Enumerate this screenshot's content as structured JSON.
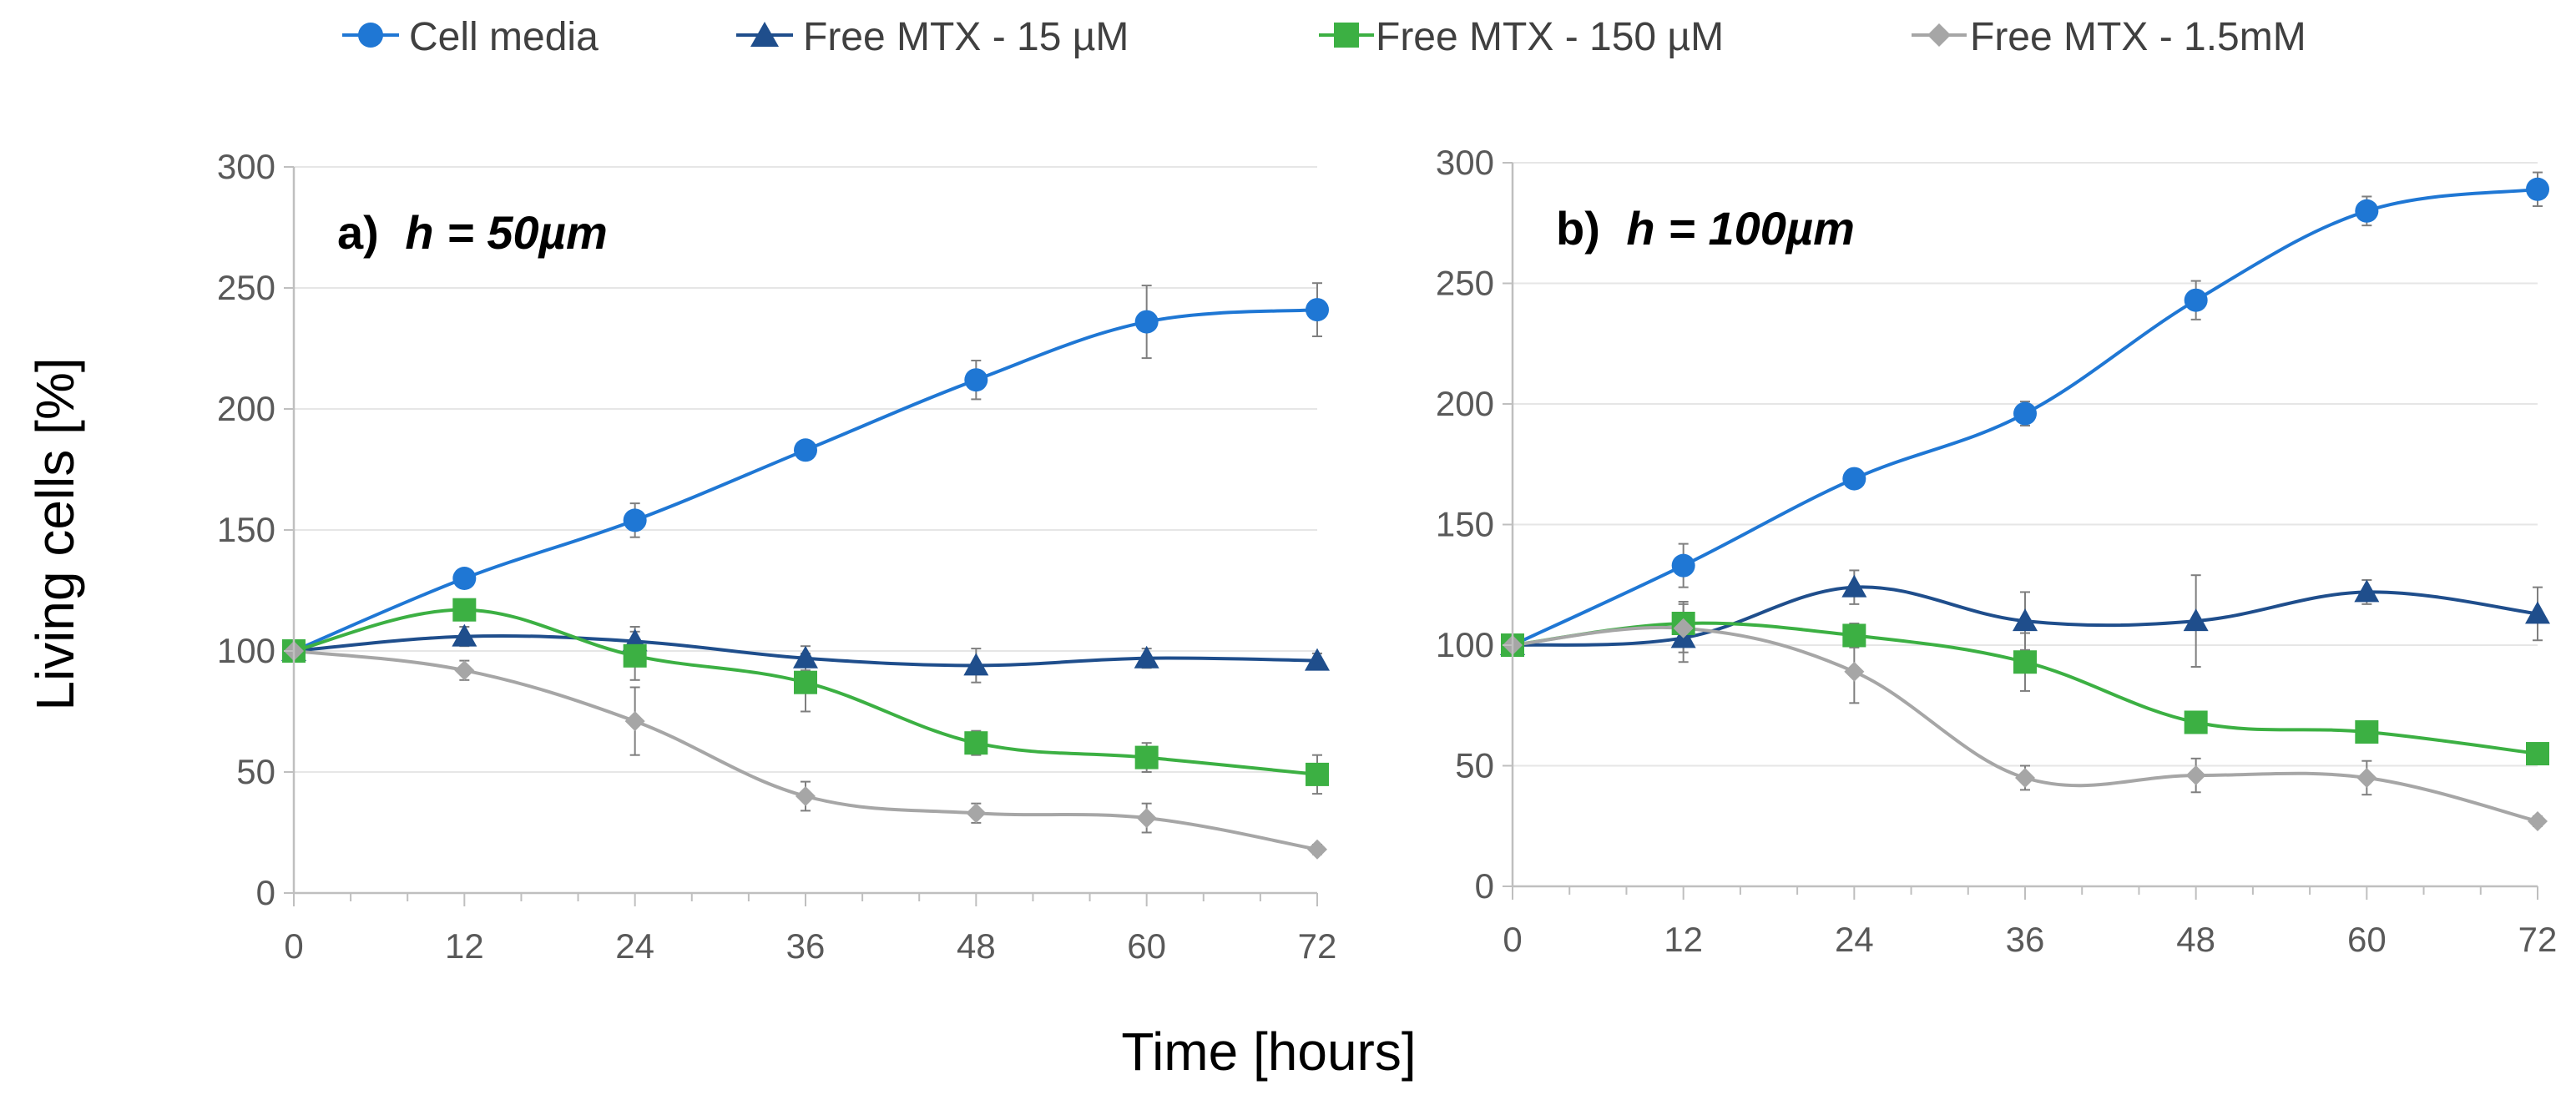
{
  "figure": {
    "xlabel": "Time [hours]",
    "ylabel": "Living cells [%]"
  },
  "legend": [
    {
      "name": "Cell media",
      "color": "#1f77d4",
      "marker": "circle"
    },
    {
      "name": "Free MTX - 15 µM",
      "color": "#1f4e8c",
      "marker": "triangle"
    },
    {
      "name": "Free MTX - 150 µM",
      "color": "#3cb043",
      "marker": "square"
    },
    {
      "name": "Free MTX - 1.5mM",
      "color": "#a6a6a6",
      "marker": "diamond"
    }
  ],
  "chart_data": [
    {
      "type": "line",
      "panel": "a)",
      "title_prefix": "h = ",
      "title_value": "50µm",
      "x": [
        0,
        12,
        24,
        36,
        48,
        60,
        72
      ],
      "xticks": [
        "0",
        "12",
        "24",
        "36",
        "48",
        "60",
        "72"
      ],
      "yticks": [
        "0",
        "50",
        "100",
        "150",
        "200",
        "250",
        "300"
      ],
      "xlim": [
        0,
        72
      ],
      "ylim": [
        0,
        300
      ],
      "grid": true,
      "series": [
        {
          "name": "Cell media",
          "values": [
            100,
            130,
            154,
            183,
            212,
            236,
            241
          ],
          "errors": [
            0,
            3,
            7,
            3,
            8,
            15,
            11
          ]
        },
        {
          "name": "Free MTX - 15 µM",
          "values": [
            100,
            106,
            104,
            97,
            94,
            97,
            96
          ],
          "errors": [
            0,
            4,
            6,
            5,
            7,
            4,
            3
          ]
        },
        {
          "name": "Free MTX - 150 µM",
          "values": [
            100,
            117,
            98,
            87,
            62,
            56,
            49
          ],
          "errors": [
            0,
            4,
            10,
            12,
            5,
            6,
            8
          ]
        },
        {
          "name": "Free MTX - 1.5mM",
          "values": [
            100,
            92,
            71,
            40,
            33,
            31,
            18
          ],
          "errors": [
            0,
            4,
            14,
            6,
            4,
            6,
            2
          ]
        }
      ]
    },
    {
      "type": "line",
      "panel": "b)",
      "title_prefix": "h = ",
      "title_value": "100µm",
      "x": [
        0,
        12,
        24,
        36,
        48,
        60,
        72
      ],
      "xticks": [
        "0",
        "12",
        "24",
        "36",
        "48",
        "60",
        "72"
      ],
      "yticks": [
        "0",
        "50",
        "100",
        "150",
        "200",
        "250",
        "300"
      ],
      "xlim": [
        0,
        72
      ],
      "ylim": [
        0,
        300
      ],
      "grid": true,
      "series": [
        {
          "name": "Cell media",
          "values": [
            100,
            133,
            169,
            196,
            243,
            280,
            289
          ],
          "errors": [
            0,
            9,
            3,
            5,
            8,
            6,
            7
          ]
        },
        {
          "name": "Free MTX - 15 µM",
          "values": [
            100,
            103,
            124,
            110,
            110,
            122,
            113
          ],
          "errors": [
            0,
            10,
            7,
            12,
            19,
            5,
            11
          ]
        },
        {
          "name": "Free MTX - 150 µM",
          "values": [
            100,
            109,
            104,
            93,
            68,
            64,
            55
          ],
          "errors": [
            0,
            9,
            5,
            12,
            3,
            3,
            2
          ]
        },
        {
          "name": "Free MTX - 1.5mM",
          "values": [
            100,
            107,
            89,
            45,
            46,
            45,
            27
          ],
          "errors": [
            0,
            10,
            13,
            5,
            7,
            7,
            2
          ]
        }
      ]
    }
  ]
}
